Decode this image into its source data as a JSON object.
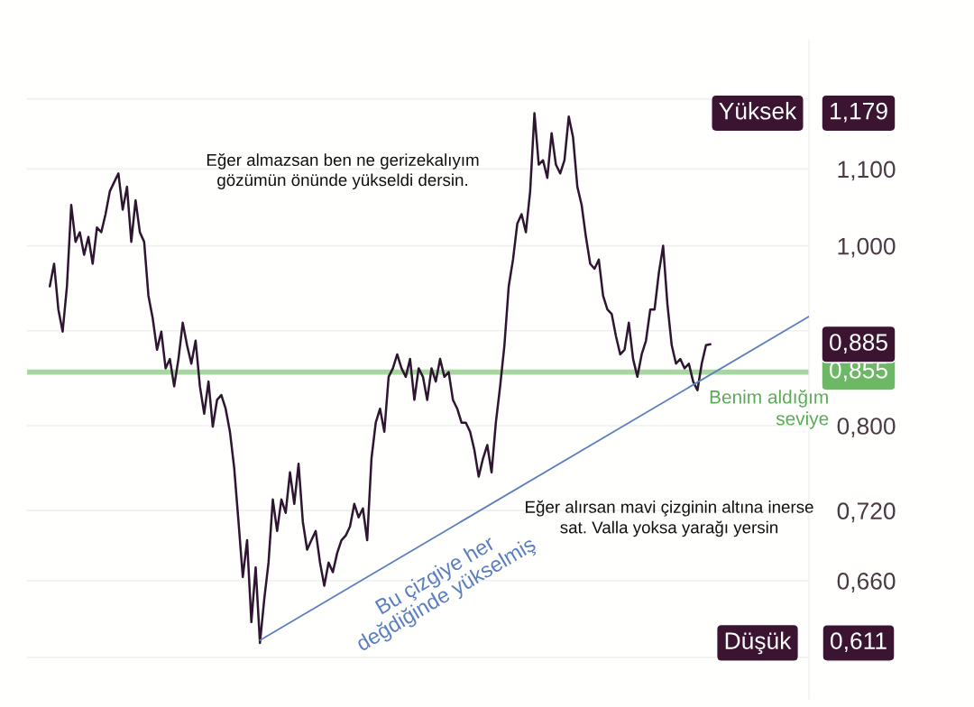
{
  "chart_data": {
    "type": "line",
    "log": "y",
    "grid": "y",
    "tick_labels": "y",
    "marker": "none",
    "line_style": "solid",
    "ylim": [
      0.57,
      1.29
    ],
    "categories": [
      null,
      null,
      null,
      null,
      null,
      null,
      null,
      null,
      null,
      null,
      null,
      null,
      null,
      null,
      null,
      null,
      null,
      null,
      null,
      null,
      null,
      null,
      null,
      null,
      null,
      null,
      null,
      null,
      null,
      null,
      null,
      null,
      null,
      null,
      null,
      null,
      null,
      null,
      null,
      null,
      null,
      null,
      null,
      null,
      null,
      null,
      null,
      null,
      null,
      null,
      null,
      null,
      null,
      null,
      null,
      null,
      null,
      null,
      null,
      null,
      null,
      null,
      null,
      null,
      null,
      null,
      null,
      null,
      null,
      null,
      null,
      null,
      null,
      null,
      null,
      null,
      null,
      null,
      null,
      null,
      null,
      null,
      null,
      null,
      null,
      null,
      null,
      null,
      null,
      null,
      null,
      null,
      null,
      null,
      null,
      null,
      null,
      null,
      null,
      null,
      null,
      null,
      null,
      null,
      null,
      null,
      null,
      null,
      null,
      null,
      null,
      null,
      null,
      null,
      null,
      null,
      null,
      null,
      null,
      null,
      null,
      null,
      null,
      null,
      null,
      null,
      null,
      null,
      null,
      null,
      null,
      null,
      null,
      null,
      null,
      null,
      null,
      null,
      null,
      null,
      null,
      null,
      null,
      null,
      null,
      null,
      null,
      null,
      null,
      null,
      null,
      null,
      null,
      null,
      null,
      null,
      null,
      null,
      null,
      null,
      null,
      null,
      null,
      null,
      null,
      null,
      null,
      null,
      null,
      null,
      null,
      null,
      null,
      null,
      null,
      null,
      null,
      null
    ],
    "yticks": [
      {
        "value": 0.6,
        "label": null
      },
      {
        "value": 0.66,
        "label": "0,660"
      },
      {
        "value": 0.72,
        "label": "0,720"
      },
      {
        "value": 0.8,
        "label": "0,800"
      },
      {
        "value": 0.9,
        "label": null
      },
      {
        "value": 1.0,
        "label": "1,000"
      },
      {
        "value": 1.1,
        "label": "1,100"
      },
      {
        "value": 1.2,
        "label": null
      }
    ],
    "series": [
      {
        "color": "#2e1530",
        "values": [
          0.951,
          0.978,
          0.924,
          0.899,
          0.951,
          1.052,
          1.005,
          1.017,
          0.989,
          1.011,
          0.978,
          1.023,
          1.017,
          1.04,
          1.07,
          1.082,
          1.094,
          1.046,
          1.076,
          1.005,
          1.058,
          1.017,
          1.005,
          0.94,
          0.914,
          0.879,
          0.899,
          0.859,
          0.869,
          0.84,
          0.869,
          0.909,
          0.884,
          0.864,
          0.889,
          0.84,
          0.812,
          0.845,
          0.799,
          0.826,
          0.831,
          0.817,
          0.794,
          0.759,
          0.71,
          0.663,
          0.694,
          0.627,
          0.671,
          0.611,
          0.645,
          0.675,
          0.73,
          0.702,
          0.73,
          0.718,
          0.755,
          0.726,
          0.763,
          0.71,
          0.686,
          0.694,
          0.702,
          0.675,
          0.656,
          0.675,
          0.667,
          0.683,
          0.694,
          0.698,
          0.706,
          0.726,
          0.714,
          0.722,
          0.694,
          0.768,
          0.803,
          0.817,
          0.794,
          0.85,
          0.859,
          0.874,
          0.859,
          0.85,
          0.869,
          0.826,
          0.859,
          0.85,
          0.826,
          0.859,
          0.845,
          0.869,
          0.85,
          0.855,
          0.826,
          0.817,
          0.803,
          0.803,
          0.794,
          0.776,
          0.751,
          0.768,
          0.781,
          0.755,
          0.803,
          0.84,
          0.884,
          0.951,
          0.983,
          1.028,
          1.04,
          1.017,
          1.07,
          1.179,
          1.106,
          1.112,
          1.088,
          1.15,
          1.106,
          1.094,
          1.112,
          1.174,
          1.144,
          1.076,
          1.052,
          1.011,
          0.978,
          0.972,
          0.983,
          0.94,
          0.924,
          0.919,
          0.894,
          0.874,
          0.879,
          0.909,
          0.869,
          0.85,
          0.874,
          0.889,
          0.924,
          0.924,
          0.967,
          1.0,
          0.93,
          0.884,
          0.864,
          0.869,
          0.859,
          0.864,
          0.845,
          0.836,
          0.864,
          0.884,
          0.885,
          null,
          null,
          null,
          null,
          null,
          null,
          null,
          null,
          null,
          null,
          null,
          null,
          null,
          null,
          null,
          null,
          null,
          null,
          null,
          null,
          null,
          null,
          null
        ]
      },
      {
        "type": "line",
        "name": "Bu çizgiye her\ndeğdiğinde yükselmiş",
        "color": "#5b7fbf",
        "values": [
          null,
          null,
          null,
          null,
          null,
          null,
          null,
          null,
          null,
          null,
          null,
          null,
          null,
          null,
          null,
          null,
          null,
          null,
          null,
          null,
          null,
          null,
          null,
          null,
          null,
          null,
          null,
          null,
          null,
          null,
          null,
          null,
          null,
          null,
          null,
          null,
          null,
          null,
          null,
          null,
          null,
          null,
          null,
          null,
          null,
          null,
          null,
          null,
          null,
          0.613,
          null,
          null,
          null,
          null,
          null,
          null,
          null,
          null,
          null,
          null,
          null,
          null,
          null,
          null,
          null,
          null,
          null,
          null,
          null,
          null,
          null,
          null,
          null,
          null,
          null,
          null,
          null,
          null,
          null,
          null,
          null,
          null,
          null,
          null,
          null,
          null,
          null,
          null,
          null,
          null,
          null,
          null,
          null,
          null,
          null,
          null,
          null,
          null,
          null,
          null,
          null,
          null,
          null,
          null,
          null,
          null,
          null,
          null,
          null,
          null,
          null,
          null,
          null,
          null,
          null,
          null,
          null,
          null,
          null,
          null,
          null,
          null,
          null,
          null,
          null,
          null,
          null,
          null,
          null,
          null,
          null,
          null,
          null,
          null,
          null,
          null,
          null,
          null,
          null,
          null,
          null,
          null,
          null,
          null,
          null,
          null,
          null,
          null,
          null,
          null,
          null,
          null,
          null,
          null,
          null,
          null,
          null,
          null,
          null,
          null,
          null,
          null,
          null,
          null,
          null,
          null,
          null,
          null,
          null,
          null,
          null,
          null,
          null,
          null,
          null,
          null,
          null,
          0.916
        ]
      }
    ],
    "ref_lines": [
      {
        "axis": "y",
        "value": 0.855,
        "label": "Benim aldığım\nseviye",
        "color": "#a9d5a3"
      }
    ],
    "annotations": [
      "Eğer almazsan ben ne gerizekalıyım\ngözümün önünde yükseldi dersin.",
      "Eğer alırsan mavi çizginin altına inerse\nsat. Valla yoksa yarağı yersin",
      "Yüksek",
      "1,179",
      "0,885",
      "0,855",
      "Düşük",
      "0,611"
    ]
  }
}
